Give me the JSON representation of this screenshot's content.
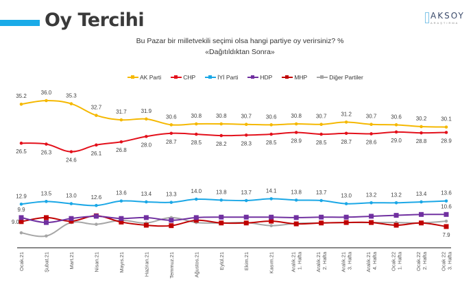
{
  "header": {
    "title": "Oy Tercihi",
    "accent_color": "#1aabe8",
    "logo_main": "AKSOY",
    "logo_sub": "ARAŞTIRMA"
  },
  "chart_data": {
    "type": "line",
    "title": "Bu Pazar bir milletvekili seçimi olsa hangi partiye oy verirsiniz? %",
    "subtitle": "«Dağıtıldıktan Sonra»",
    "xlabel": "",
    "ylabel": "",
    "ylim": [
      3.4,
      37
    ],
    "grid": false,
    "legend_position": "top",
    "categories": [
      [
        "Ocak.21"
      ],
      [
        "Şubat.21"
      ],
      [
        "Mart.21"
      ],
      [
        "Nisan.21"
      ],
      [
        "Mayıs.21"
      ],
      [
        "Haziran.21"
      ],
      [
        "Temmuz.21"
      ],
      [
        "Ağustos.21"
      ],
      [
        "Eylül.21"
      ],
      [
        "Ekim.21"
      ],
      [
        "Kasım.21"
      ],
      [
        "Aralık.21",
        "1. Hafta"
      ],
      [
        "Aralık.21",
        "2. Hafta"
      ],
      [
        "Aralık.21",
        "3. Hafta"
      ],
      [
        "Aralık.21",
        "4. Hafta"
      ],
      [
        "Ocak.22",
        "1. Hafta"
      ],
      [
        "Ocak.22",
        "2. Hafta"
      ],
      [
        "Ocak 22",
        "3. Hafta"
      ]
    ],
    "series": [
      {
        "name": "AK Parti",
        "color": "#f5b800",
        "marker": "dot",
        "labels": "above",
        "values": [
          35.2,
          36.0,
          35.3,
          32.7,
          31.7,
          31.9,
          30.6,
          30.8,
          30.8,
          30.7,
          30.6,
          30.8,
          30.7,
          31.2,
          30.7,
          30.6,
          30.2,
          30.1
        ]
      },
      {
        "name": "CHP",
        "color": "#e3101b",
        "marker": "dot",
        "labels": "below",
        "values": [
          26.5,
          26.3,
          24.6,
          26.1,
          26.8,
          28.0,
          28.7,
          28.5,
          28.2,
          28.3,
          28.5,
          28.9,
          28.5,
          28.7,
          28.6,
          29.0,
          28.8,
          28.9
        ]
      },
      {
        "name": "İYİ Parti",
        "color": "#1aa7e6",
        "marker": "dot",
        "labels": "above",
        "values": [
          12.9,
          13.5,
          13.0,
          12.6,
          13.6,
          13.4,
          13.3,
          14.0,
          13.8,
          13.7,
          14.1,
          13.8,
          13.7,
          13.0,
          13.2,
          13.2,
          13.4,
          13.6
        ]
      },
      {
        "name": "HDP",
        "color": "#7030a0",
        "marker": "square",
        "labels": "ends",
        "values": [
          9.9,
          8.8,
          9.7,
          10.2,
          9.7,
          9.9,
          9.3,
          9.9,
          10.0,
          10.0,
          10.0,
          9.9,
          10.0,
          10.0,
          10.2,
          10.4,
          10.6,
          10.6
        ]
      },
      {
        "name": "MHP",
        "color": "#c00000",
        "marker": "square",
        "labels": "ends",
        "values": [
          9.0,
          9.9,
          9.1,
          10.3,
          8.9,
          8.2,
          8.1,
          9.3,
          8.7,
          8.7,
          9.1,
          8.5,
          8.7,
          8.8,
          8.8,
          8.2,
          8.7,
          7.9
        ]
      },
      {
        "name": "Diğer Partiler",
        "color": "#a6a6a6",
        "marker": "dot",
        "labels": "none",
        "values": [
          6.5,
          5.8,
          8.8,
          8.4,
          9.3,
          8.7,
          9.9,
          8.8,
          8.7,
          8.8,
          8.1,
          8.6,
          8.7,
          8.8,
          8.8,
          8.8,
          8.7,
          9.1
        ]
      }
    ]
  }
}
